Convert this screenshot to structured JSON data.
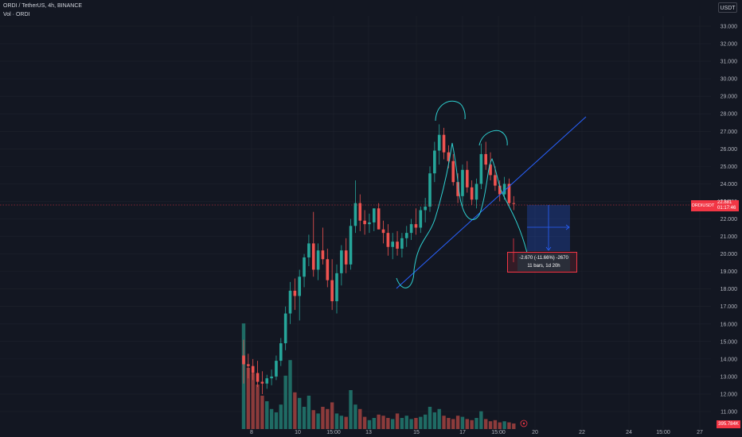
{
  "header": {
    "title": "ORDI / TetherUS, 4h, BINANCE",
    "vol_label": "Vol · ORDI"
  },
  "currency_button": "USDT",
  "price_tag": {
    "symbol": "ORDIUSDT",
    "price": "22.881",
    "countdown": "01:17:46"
  },
  "volume_tag": "395.784K",
  "measure": {
    "line1": "-2.670 (-11.66%) -2670",
    "line2": "11 bars, 1d 20h"
  },
  "colors": {
    "up": "#26a69a",
    "down": "#ef5350",
    "up_vol": "#1f6b64",
    "down_vol": "#8c3b3b",
    "grid": "#1e222d",
    "drawing": "#2ecfcf",
    "trendline": "#2962ff",
    "bg": "#131722"
  },
  "chart_data": {
    "type": "candlestick",
    "title": "ORDI / TetherUS, 4h, BINANCE",
    "y_ticks": [
      11.0,
      12.0,
      13.0,
      14.0,
      15.0,
      16.0,
      17.0,
      18.0,
      19.0,
      20.0,
      21.0,
      22.0,
      23.0,
      24.0,
      25.0,
      26.0,
      27.0,
      28.0,
      29.0,
      30.0,
      31.0,
      32.0,
      33.0
    ],
    "y_tick_labels": [
      "11.000",
      "12.000",
      "13.000",
      "14.000",
      "15.000",
      "16.000",
      "17.000",
      "18.000",
      "19.000",
      "20.000",
      "21.000",
      "22.000",
      "23.000",
      "24.000",
      "25.000",
      "26.000",
      "27.000",
      "28.000",
      "29.000",
      "30.000",
      "31.000",
      "32.000",
      "33.000"
    ],
    "x_tick_labels": [
      "8",
      "10",
      "15:00",
      "13",
      "15",
      "17",
      "15:00",
      "20",
      "22",
      "24",
      "15:00",
      "27"
    ],
    "ylim": [
      10.4,
      34.0
    ],
    "current_price": 22.881,
    "candles": [
      {
        "o": 14.2,
        "h": 15.1,
        "l": 12.6,
        "c": 13.7
      },
      {
        "o": 13.7,
        "h": 14.3,
        "l": 12.9,
        "c": 13.6
      },
      {
        "o": 13.6,
        "h": 14.0,
        "l": 12.8,
        "c": 13.2
      },
      {
        "o": 13.2,
        "h": 13.9,
        "l": 12.4,
        "c": 12.7
      },
      {
        "o": 12.7,
        "h": 13.3,
        "l": 12.0,
        "c": 12.6
      },
      {
        "o": 12.6,
        "h": 13.1,
        "l": 12.3,
        "c": 12.9
      },
      {
        "o": 12.9,
        "h": 13.4,
        "l": 12.5,
        "c": 13.0
      },
      {
        "o": 13.0,
        "h": 14.2,
        "l": 12.8,
        "c": 13.9
      },
      {
        "o": 13.9,
        "h": 15.2,
        "l": 13.6,
        "c": 14.9
      },
      {
        "o": 14.9,
        "h": 17.0,
        "l": 14.5,
        "c": 16.6
      },
      {
        "o": 16.6,
        "h": 18.4,
        "l": 16.0,
        "c": 17.9
      },
      {
        "o": 17.9,
        "h": 18.6,
        "l": 16.8,
        "c": 17.6
      },
      {
        "o": 17.6,
        "h": 19.1,
        "l": 16.2,
        "c": 18.7
      },
      {
        "o": 18.7,
        "h": 20.0,
        "l": 18.1,
        "c": 19.8
      },
      {
        "o": 19.8,
        "h": 21.1,
        "l": 19.3,
        "c": 20.6
      },
      {
        "o": 20.6,
        "h": 22.4,
        "l": 18.7,
        "c": 19.1
      },
      {
        "o": 19.1,
        "h": 20.6,
        "l": 18.5,
        "c": 20.2
      },
      {
        "o": 20.2,
        "h": 21.5,
        "l": 19.4,
        "c": 19.7
      },
      {
        "o": 19.7,
        "h": 20.3,
        "l": 18.1,
        "c": 18.5
      },
      {
        "o": 18.5,
        "h": 19.7,
        "l": 16.8,
        "c": 17.3
      },
      {
        "o": 17.3,
        "h": 19.4,
        "l": 16.6,
        "c": 18.9
      },
      {
        "o": 18.9,
        "h": 20.5,
        "l": 18.2,
        "c": 20.2
      },
      {
        "o": 20.2,
        "h": 20.9,
        "l": 18.9,
        "c": 19.4
      },
      {
        "o": 19.4,
        "h": 22.0,
        "l": 19.1,
        "c": 21.6
      },
      {
        "o": 21.6,
        "h": 24.2,
        "l": 21.2,
        "c": 22.9
      },
      {
        "o": 22.9,
        "h": 23.4,
        "l": 21.3,
        "c": 21.9
      },
      {
        "o": 21.9,
        "h": 22.5,
        "l": 21.1,
        "c": 21.7
      },
      {
        "o": 21.7,
        "h": 22.3,
        "l": 21.2,
        "c": 21.8
      },
      {
        "o": 21.8,
        "h": 22.6,
        "l": 21.3,
        "c": 22.6
      },
      {
        "o": 22.6,
        "h": 22.9,
        "l": 21.4,
        "c": 21.4
      },
      {
        "o": 21.4,
        "h": 21.9,
        "l": 20.6,
        "c": 21.2
      },
      {
        "o": 21.2,
        "h": 21.7,
        "l": 19.9,
        "c": 20.4
      },
      {
        "o": 20.4,
        "h": 21.2,
        "l": 19.7,
        "c": 20.7
      },
      {
        "o": 20.7,
        "h": 21.3,
        "l": 19.9,
        "c": 20.3
      },
      {
        "o": 20.3,
        "h": 21.2,
        "l": 19.8,
        "c": 20.9
      },
      {
        "o": 20.9,
        "h": 21.6,
        "l": 20.4,
        "c": 21.2
      },
      {
        "o": 21.2,
        "h": 22.0,
        "l": 20.8,
        "c": 21.7
      },
      {
        "o": 21.7,
        "h": 22.6,
        "l": 21.1,
        "c": 21.5
      },
      {
        "o": 21.5,
        "h": 22.7,
        "l": 21.2,
        "c": 22.5
      },
      {
        "o": 22.5,
        "h": 23.2,
        "l": 21.8,
        "c": 22.7
      },
      {
        "o": 22.7,
        "h": 25.0,
        "l": 22.4,
        "c": 24.6
      },
      {
        "o": 24.6,
        "h": 26.4,
        "l": 24.1,
        "c": 25.9
      },
      {
        "o": 25.9,
        "h": 27.4,
        "l": 25.1,
        "c": 26.8
      },
      {
        "o": 26.8,
        "h": 27.2,
        "l": 25.4,
        "c": 25.8
      },
      {
        "o": 25.8,
        "h": 26.2,
        "l": 24.9,
        "c": 25.3
      },
      {
        "o": 25.3,
        "h": 25.7,
        "l": 23.9,
        "c": 24.1
      },
      {
        "o": 24.1,
        "h": 24.6,
        "l": 22.9,
        "c": 23.3
      },
      {
        "o": 23.3,
        "h": 25.1,
        "l": 22.7,
        "c": 24.8
      },
      {
        "o": 24.8,
        "h": 25.3,
        "l": 23.5,
        "c": 23.8
      },
      {
        "o": 23.8,
        "h": 24.2,
        "l": 22.8,
        "c": 23.1
      },
      {
        "o": 23.1,
        "h": 24.3,
        "l": 22.6,
        "c": 24.0
      },
      {
        "o": 24.0,
        "h": 26.3,
        "l": 23.7,
        "c": 25.7
      },
      {
        "o": 25.7,
        "h": 26.4,
        "l": 24.8,
        "c": 25.1
      },
      {
        "o": 25.1,
        "h": 25.8,
        "l": 24.2,
        "c": 24.5
      },
      {
        "o": 24.5,
        "h": 25.0,
        "l": 23.6,
        "c": 23.9
      },
      {
        "o": 23.9,
        "h": 24.2,
        "l": 23.0,
        "c": 23.4
      },
      {
        "o": 23.4,
        "h": 24.4,
        "l": 23.1,
        "c": 24.0
      },
      {
        "o": 24.0,
        "h": 24.3,
        "l": 22.7,
        "c": 22.9
      },
      {
        "o": 22.9,
        "h": 23.3,
        "l": 22.5,
        "c": 22.881
      }
    ],
    "volume": [
      {
        "v": 0.95,
        "up": true
      },
      {
        "v": 0.55,
        "up": false
      },
      {
        "v": 0.5,
        "up": false
      },
      {
        "v": 0.4,
        "up": false
      },
      {
        "v": 0.3,
        "up": false
      },
      {
        "v": 0.25,
        "up": true
      },
      {
        "v": 0.18,
        "up": true
      },
      {
        "v": 0.15,
        "up": true
      },
      {
        "v": 0.22,
        "up": true
      },
      {
        "v": 0.48,
        "up": true
      },
      {
        "v": 0.62,
        "up": true
      },
      {
        "v": 0.33,
        "up": false
      },
      {
        "v": 0.28,
        "up": true
      },
      {
        "v": 0.2,
        "up": true
      },
      {
        "v": 0.3,
        "up": true
      },
      {
        "v": 0.17,
        "up": false
      },
      {
        "v": 0.14,
        "up": true
      },
      {
        "v": 0.2,
        "up": false
      },
      {
        "v": 0.18,
        "up": false
      },
      {
        "v": 0.24,
        "up": false
      },
      {
        "v": 0.14,
        "up": true
      },
      {
        "v": 0.12,
        "up": true
      },
      {
        "v": 0.11,
        "up": false
      },
      {
        "v": 0.35,
        "up": true
      },
      {
        "v": 0.22,
        "up": true
      },
      {
        "v": 0.18,
        "up": false
      },
      {
        "v": 0.11,
        "up": false
      },
      {
        "v": 0.08,
        "up": true
      },
      {
        "v": 0.1,
        "up": true
      },
      {
        "v": 0.13,
        "up": false
      },
      {
        "v": 0.12,
        "up": false
      },
      {
        "v": 0.1,
        "up": false
      },
      {
        "v": 0.09,
        "up": true
      },
      {
        "v": 0.14,
        "up": false
      },
      {
        "v": 0.1,
        "up": true
      },
      {
        "v": 0.12,
        "up": true
      },
      {
        "v": 0.09,
        "up": true
      },
      {
        "v": 0.1,
        "up": false
      },
      {
        "v": 0.11,
        "up": true
      },
      {
        "v": 0.13,
        "up": true
      },
      {
        "v": 0.2,
        "up": true
      },
      {
        "v": 0.15,
        "up": true
      },
      {
        "v": 0.18,
        "up": true
      },
      {
        "v": 0.12,
        "up": false
      },
      {
        "v": 0.1,
        "up": false
      },
      {
        "v": 0.09,
        "up": false
      },
      {
        "v": 0.12,
        "up": false
      },
      {
        "v": 0.11,
        "up": true
      },
      {
        "v": 0.09,
        "up": false
      },
      {
        "v": 0.08,
        "up": false
      },
      {
        "v": 0.1,
        "up": true
      },
      {
        "v": 0.16,
        "up": true
      },
      {
        "v": 0.09,
        "up": false
      },
      {
        "v": 0.07,
        "up": false
      },
      {
        "v": 0.08,
        "up": false
      },
      {
        "v": 0.06,
        "up": false
      },
      {
        "v": 0.07,
        "up": true
      },
      {
        "v": 0.06,
        "up": false
      },
      {
        "v": 0.05,
        "up": false
      }
    ]
  }
}
